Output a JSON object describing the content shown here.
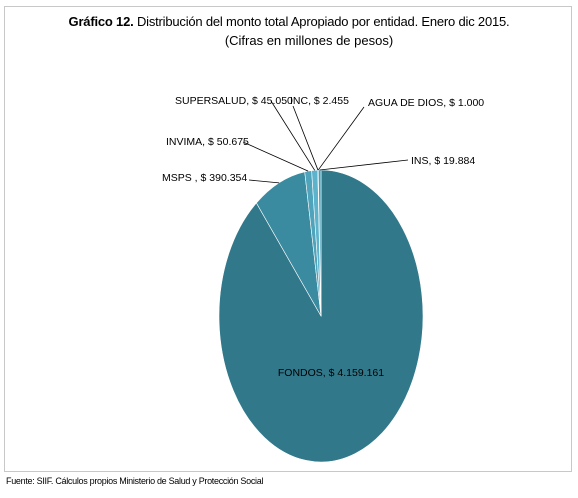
{
  "title_prefix": "Gráfico 12.",
  "title_rest": " Distribución del monto total Apropiado por entidad. Enero dic 2015.",
  "subtitle": "(Cifras en millones de pesos)",
  "source": "Fuente: SIIF. Cálculos propios Ministerio de Salud y Protección Social",
  "chart_data": {
    "type": "pie",
    "title": "Gráfico 12. Distribución del monto total Apropiado por entidad. Enero dic 2015.",
    "subtitle": "(Cifras en millones de pesos)",
    "slices": [
      {
        "name": "FONDOS",
        "value": 4159161,
        "label": "FONDOS, $ 4.159.161",
        "color": "#31788a"
      },
      {
        "name": "MSPS",
        "value": 390354,
        "label": "MSPS  , $ 390.354",
        "color": "#3a8ba0"
      },
      {
        "name": "INVIMA",
        "value": 50675,
        "label": "INVIMA, $ 50.675",
        "color": "#4fa3bb"
      },
      {
        "name": "SUPERSALUD",
        "value": 45050,
        "label": "SUPERSALUD, $ 45.050",
        "color": "#5cb3cb"
      },
      {
        "name": "INC",
        "value": 2455,
        "label": "INC, $ 2.455",
        "color": "#6dbfd6"
      },
      {
        "name": "AGUA DE DIOS",
        "value": 1000,
        "label": "AGUA DE DIOS, $ 1.000",
        "color": "#7ccbe0"
      },
      {
        "name": "INS",
        "value": 19884,
        "label": "INS, $ 19.884",
        "color": "#48a0b8"
      }
    ],
    "legend": "none"
  }
}
